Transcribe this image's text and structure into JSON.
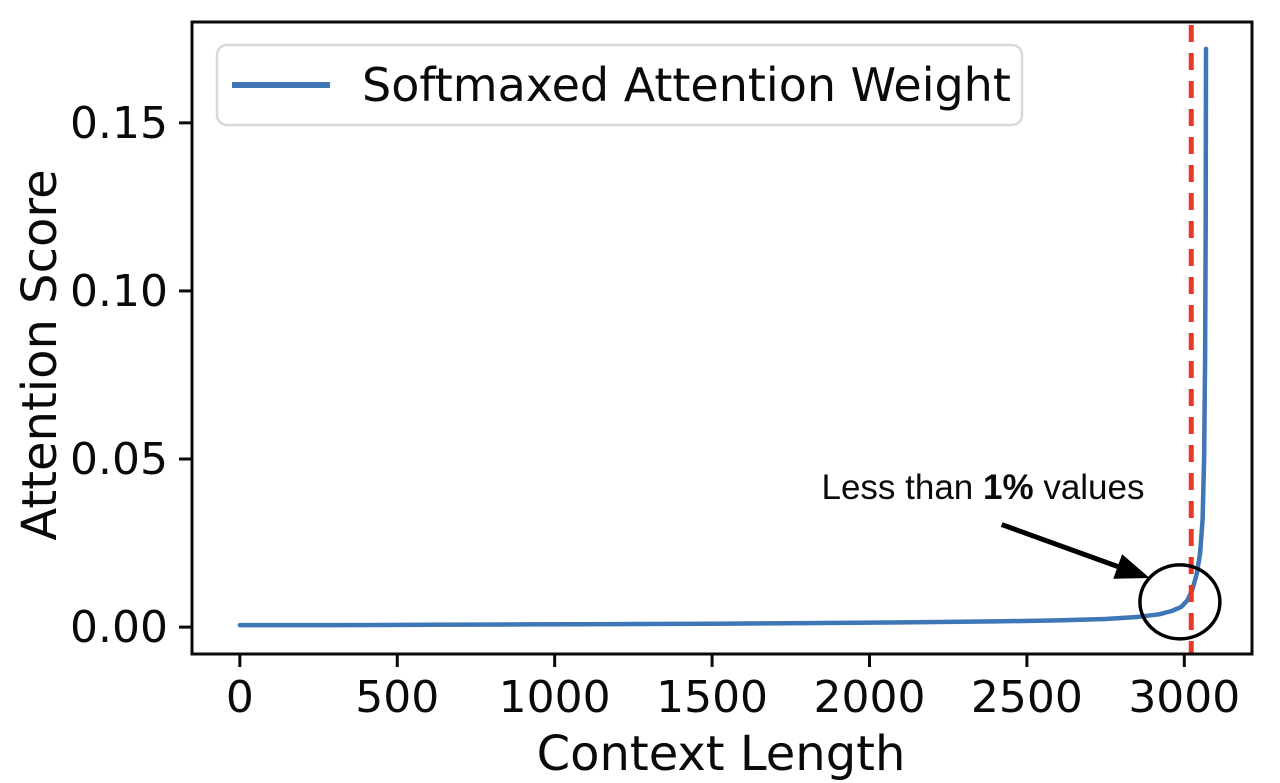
{
  "figure": {
    "background": "#ffffff",
    "spine_color": "#0a0a0a"
  },
  "chart_data": {
    "type": "line",
    "title": "",
    "xlabel": "Context Length",
    "ylabel": "Attention Score",
    "xlim": [
      -152,
      3215
    ],
    "ylim": [
      -0.008,
      0.18
    ],
    "grid": false,
    "legend": {
      "position": "upper-left",
      "entries": [
        "Softmaxed Attention Weight"
      ]
    },
    "xticks": [
      {
        "v": 0,
        "label": "0"
      },
      {
        "v": 500,
        "label": "500"
      },
      {
        "v": 1000,
        "label": "1000"
      },
      {
        "v": 1500,
        "label": "1500"
      },
      {
        "v": 2000,
        "label": "2000"
      },
      {
        "v": 2500,
        "label": "2500"
      },
      {
        "v": 3000,
        "label": "3000"
      }
    ],
    "yticks": [
      {
        "v": 0.0,
        "label": "0.00"
      },
      {
        "v": 0.05,
        "label": "0.05"
      },
      {
        "v": 0.1,
        "label": "0.10"
      },
      {
        "v": 0.15,
        "label": "0.15"
      }
    ],
    "series": [
      {
        "name": "Softmaxed Attention Weight",
        "color": "#3f76b5",
        "points": [
          [
            0,
            0.0006
          ],
          [
            300,
            0.0006
          ],
          [
            600,
            0.0007
          ],
          [
            900,
            0.0008
          ],
          [
            1200,
            0.0009
          ],
          [
            1500,
            0.001
          ],
          [
            1800,
            0.0012
          ],
          [
            2100,
            0.0014
          ],
          [
            2400,
            0.0017
          ],
          [
            2600,
            0.002
          ],
          [
            2750,
            0.0024
          ],
          [
            2850,
            0.003
          ],
          [
            2920,
            0.0038
          ],
          [
            2960,
            0.0048
          ],
          [
            2990,
            0.006
          ],
          [
            3010,
            0.008
          ],
          [
            3025,
            0.011
          ],
          [
            3040,
            0.016
          ],
          [
            3050,
            0.022
          ],
          [
            3058,
            0.032
          ],
          [
            3063,
            0.05
          ],
          [
            3066,
            0.08
          ],
          [
            3068,
            0.12
          ],
          [
            3069,
            0.172
          ]
        ]
      }
    ],
    "vline": {
      "x": 3022,
      "color": "#ea3827",
      "style": "dashed"
    },
    "annotations": {
      "callout": {
        "prefix": "Less than ",
        "bold": "1%",
        "suffix": " values",
        "x": 2360,
        "y": 0.042
      },
      "arrow": {
        "x1": 2420,
        "y1": 0.0305,
        "x2": 2890,
        "y2": 0.0146,
        "color": "#000000"
      },
      "circle": {
        "x": 2986,
        "y": 0.0075,
        "rx": 127,
        "ry": 0.011,
        "color": "#000000"
      }
    }
  }
}
